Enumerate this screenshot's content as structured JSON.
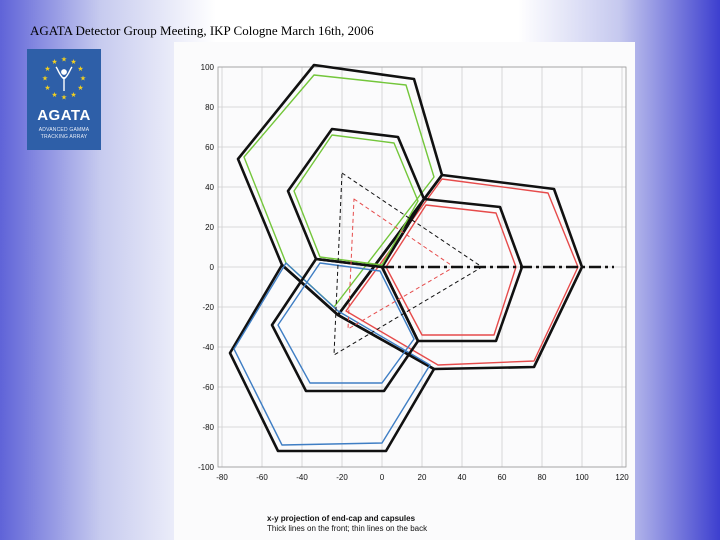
{
  "slide": {
    "title": "AGATA Detector Group Meeting, IKP  Cologne March 16th, 2006"
  },
  "logo": {
    "name": "AGATA",
    "line1": "ADVANCED GAMMA",
    "line2": "TRACKING ARRAY",
    "bg_color": "#2e5fa8",
    "star_color": "#f1cf20",
    "icon": "eu-stars-icon"
  },
  "plot": {
    "caption_title": "x-y projection of end-cap and capsules",
    "caption_sub": "Thick lines on the front; thin lines on the back",
    "x_ticks": [
      -80,
      -60,
      -40,
      -20,
      0,
      20,
      40,
      60,
      80,
      100,
      120
    ],
    "y_ticks": [
      100,
      80,
      60,
      40,
      20,
      0,
      -20,
      -40,
      -60,
      -80,
      -100
    ],
    "xlim": [
      -82,
      122
    ],
    "ylim": [
      -100,
      100
    ],
    "colors": {
      "green": "#73c63a",
      "red": "#e64b4b",
      "blue": "#3f7ec4",
      "black": "#111111",
      "grid": "#cfcfcf"
    },
    "shapes": [
      {
        "kind": "outer-front",
        "color": "black",
        "width": 2.6,
        "pts": [
          [
            -34,
            101
          ],
          [
            16,
            94
          ],
          [
            30,
            46
          ],
          [
            -22,
            -24
          ],
          [
            -50,
            1
          ],
          [
            -72,
            54
          ]
        ]
      },
      {
        "kind": "outer-front",
        "color": "black",
        "width": 2.6,
        "pts": [
          [
            30,
            46
          ],
          [
            86,
            39
          ],
          [
            100,
            0
          ],
          [
            76,
            -50
          ],
          [
            26,
            -51
          ],
          [
            -22,
            -24
          ]
        ]
      },
      {
        "kind": "outer-front",
        "color": "black",
        "width": 2.6,
        "pts": [
          [
            -50,
            1
          ],
          [
            -76,
            -43
          ],
          [
            -52,
            -92
          ],
          [
            2,
            -92
          ],
          [
            26,
            -51
          ],
          [
            -22,
            -24
          ]
        ]
      },
      {
        "kind": "outer-back",
        "color": "green",
        "width": 1.4,
        "pts": [
          [
            -34,
            96
          ],
          [
            12,
            91
          ],
          [
            26,
            45
          ],
          [
            -24,
            -20
          ],
          [
            -48,
            2
          ],
          [
            -69,
            55
          ]
        ]
      },
      {
        "kind": "outer-back",
        "color": "red",
        "width": 1.4,
        "pts": [
          [
            30,
            44
          ],
          [
            83,
            37
          ],
          [
            98,
            0
          ],
          [
            76,
            -47
          ],
          [
            28,
            -49
          ],
          [
            -18,
            -22
          ]
        ]
      },
      {
        "kind": "outer-back",
        "color": "blue",
        "width": 1.4,
        "pts": [
          [
            -48,
            2
          ],
          [
            -74,
            -41
          ],
          [
            -50,
            -89
          ],
          [
            0,
            -88
          ],
          [
            24,
            -49
          ],
          [
            -22,
            -22
          ]
        ]
      },
      {
        "kind": "capsule-front",
        "color": "black",
        "width": 2.6,
        "pts": [
          [
            -25,
            69
          ],
          [
            8,
            65
          ],
          [
            21,
            34
          ],
          [
            0,
            0
          ],
          [
            -33,
            4
          ],
          [
            -47,
            38
          ]
        ]
      },
      {
        "kind": "capsule-front",
        "color": "black",
        "width": 2.6,
        "pts": [
          [
            21,
            34
          ],
          [
            59,
            30
          ],
          [
            70,
            0
          ],
          [
            57,
            -37
          ],
          [
            18,
            -37
          ],
          [
            0,
            0
          ]
        ]
      },
      {
        "kind": "capsule-front",
        "color": "black",
        "width": 2.6,
        "pts": [
          [
            -33,
            4
          ],
          [
            -55,
            -29
          ],
          [
            -38,
            -62
          ],
          [
            1,
            -62
          ],
          [
            18,
            -37
          ],
          [
            0,
            0
          ]
        ]
      },
      {
        "kind": "capsule-back",
        "color": "green",
        "width": 1.4,
        "pts": [
          [
            -25,
            66
          ],
          [
            6,
            62
          ],
          [
            18,
            33
          ],
          [
            0,
            1
          ],
          [
            -31,
            5
          ],
          [
            -44,
            38
          ]
        ]
      },
      {
        "kind": "capsule-back",
        "color": "red",
        "width": 1.4,
        "pts": [
          [
            22,
            31
          ],
          [
            57,
            27
          ],
          [
            67,
            0
          ],
          [
            56,
            -34
          ],
          [
            20,
            -34
          ],
          [
            2,
            0
          ]
        ]
      },
      {
        "kind": "capsule-back",
        "color": "blue",
        "width": 1.4,
        "pts": [
          [
            -31,
            2
          ],
          [
            -52,
            -29
          ],
          [
            -36,
            -58
          ],
          [
            0,
            -58
          ],
          [
            16,
            -36
          ],
          [
            -1,
            -2
          ]
        ]
      },
      {
        "kind": "triangle-front",
        "color": "black",
        "width": 1.0,
        "dash": "4,3",
        "pts": [
          [
            -20,
            47
          ],
          [
            50,
            0
          ],
          [
            -24,
            -44
          ]
        ]
      },
      {
        "kind": "triangle-back",
        "color": "red",
        "width": 1.0,
        "dash": "4,3",
        "pts": [
          [
            -14,
            34
          ],
          [
            36,
            0
          ],
          [
            -17,
            -31
          ]
        ]
      }
    ],
    "axis_line": {
      "from": [
        0,
        0
      ],
      "to": [
        116,
        0
      ]
    }
  }
}
